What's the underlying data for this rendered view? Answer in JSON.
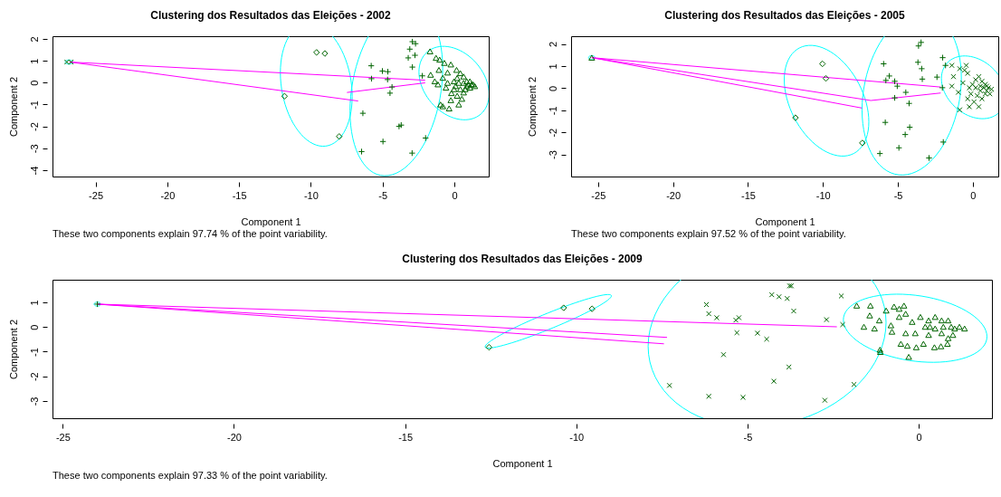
{
  "chart_data": [
    {
      "type": "scatter",
      "title": "Clustering dos Resultados das Eleições - 2002",
      "xlabel": "Component 1",
      "ylabel": "Component 2",
      "annotations": [
        "These two components explain 97.74 % of the point variability."
      ],
      "xlim": [
        -28.0,
        2.4
      ],
      "ylim": [
        -4.29,
        2.12
      ],
      "xticks": [
        -25,
        -20,
        -15,
        -10,
        -5,
        0
      ],
      "yticks": [
        -4,
        -3,
        -2,
        -1,
        0,
        1,
        2
      ],
      "series": [
        {
          "type": "line",
          "color": "#ff00ff",
          "x": [
            -26.8,
            -2.03
          ],
          "values": [
            0.94,
            0.11
          ]
        },
        {
          "type": "line",
          "color": "#ff00ff",
          "x": [
            -26.8,
            -6.7
          ],
          "values": [
            0.94,
            -0.84
          ]
        },
        {
          "type": "line",
          "color": "#ff00ff",
          "x": [
            -7.48,
            -2.03
          ],
          "values": [
            -0.45,
            -0.01
          ]
        },
        {
          "type": "scatter",
          "marker": "x",
          "color": "#006400",
          "x": [
            -27.0,
            -26.7
          ],
          "values": [
            0.94,
            0.94
          ]
        },
        {
          "type": "scatter",
          "marker": "diamond",
          "color": "#006400",
          "x": [
            -9.6,
            -9.02,
            -11.83,
            -8.02
          ],
          "values": [
            1.38,
            1.33,
            -0.62,
            -2.46
          ]
        },
        {
          "type": "scatter",
          "marker": "cross",
          "color": "#006400",
          "x": [
            -5.79,
            -5.77,
            -5.01,
            -4.63,
            -4.65,
            -4.34,
            -4.48,
            -6.37,
            -3.85,
            -3.7,
            -4.97,
            -6.46,
            -2.94,
            -2.0,
            -2.23,
            -2.92,
            -2.74,
            -3.1,
            -3.21,
            -2.92,
            -2.7
          ],
          "values": [
            0.77,
            0.18,
            0.53,
            0.5,
            0.14,
            -0.2,
            -0.48,
            -1.4,
            -2.0,
            -1.94,
            -2.69,
            -3.15,
            -3.22,
            -2.53,
            0.31,
            0.71,
            1.25,
            1.53,
            1.13,
            1.87,
            1.78
          ]
        },
        {
          "type": "scatter",
          "marker": "triangle",
          "color": "#006400",
          "x": [
            -1.69,
            -1.27,
            -1.02,
            -0.69,
            -0.24,
            0.16,
            -1.65,
            -1.36,
            -1.14,
            -1.07,
            -0.8,
            -0.47,
            -0.2,
            -0.24,
            -0.96,
            -0.8,
            -0.36,
            0.31,
            0.53,
            0.65,
            0.87,
            1.09,
            1.31,
            1.43,
            0.65,
            0.42,
            0.2,
            -0.02,
            0.09,
            0.42,
            0.76,
            1.09,
            0.87,
            0.65,
            0.31,
            1.2,
            0.98,
            -0.47,
            -0.58,
            -0.02,
            0.2
          ],
          "values": [
            1.43,
            1.13,
            1.05,
            0.9,
            0.83,
            0.58,
            0.36,
            0.06,
            -0.08,
            0.58,
            0.22,
            0.46,
            -0.48,
            -0.8,
            -1.0,
            -1.08,
            -1.18,
            -1.0,
            -0.74,
            -0.45,
            -0.16,
            0.06,
            -0.08,
            -0.16,
            0.28,
            0.43,
            0.21,
            0.06,
            -0.16,
            -0.3,
            -0.3,
            -0.23,
            0.06,
            -0.01,
            -0.01,
            -0.08,
            -0.08,
            -0.01,
            -0.23,
            -0.3,
            -0.6
          ]
        }
      ]
    },
    {
      "type": "scatter",
      "title": "Clustering dos Resultados das Eleições - 2005",
      "xlabel": "Component 1",
      "ylabel": "Component 2",
      "annotations": [
        "These two components explain 97.52 % of the point variability."
      ],
      "xlim": [
        -26.8,
        1.7
      ],
      "ylim": [
        -4.0,
        2.35
      ],
      "xticks": [
        -25,
        -20,
        -15,
        -10,
        -5,
        0
      ],
      "yticks": [
        -3,
        -2,
        -1,
        0,
        1,
        2
      ],
      "series": [
        {
          "type": "line",
          "color": "#ff00ff",
          "x": [
            -25.42,
            -2.14
          ],
          "values": [
            1.38,
            0.05
          ]
        },
        {
          "type": "line",
          "color": "#ff00ff",
          "x": [
            -25.42,
            -6.8,
            -2.14
          ],
          "values": [
            1.38,
            -0.56,
            -0.22
          ]
        },
        {
          "type": "line",
          "color": "#ff00ff",
          "x": [
            -25.42,
            -7.4
          ],
          "values": [
            1.38,
            -0.9
          ]
        },
        {
          "type": "scatter",
          "marker": "triangle",
          "color": "#006400",
          "x": [
            -25.42
          ],
          "values": [
            1.38
          ]
        },
        {
          "type": "scatter",
          "marker": "diamond",
          "color": "#006400",
          "x": [
            -10.03,
            -9.8,
            -11.83,
            -7.37
          ],
          "values": [
            1.1,
            0.44,
            -1.34,
            -2.48
          ]
        },
        {
          "type": "scatter",
          "marker": "cross",
          "color": "#006400",
          "x": [
            -5.95,
            -5.8,
            -5.57,
            -5.21,
            -5.04,
            -5.21,
            -4.47,
            -4.25,
            -5.84,
            -4.21,
            -4.51,
            -6.2,
            -4.93,
            -2.92,
            -1.97,
            -2.03,
            -2.39,
            -3.37,
            -3.41,
            -3.66,
            -3.62,
            -3.45,
            -2.01,
            -1.82
          ],
          "values": [
            1.1,
            0.35,
            0.55,
            0.31,
            0.09,
            -0.44,
            -0.19,
            -0.69,
            -1.55,
            -1.77,
            -2.1,
            -2.96,
            -2.7,
            -3.16,
            -2.44,
            0.02,
            0.5,
            0.41,
            0.88,
            1.17,
            1.91,
            2.07,
            1.38,
            1.03
          ]
        },
        {
          "type": "scatter",
          "marker": "x",
          "color": "#006400",
          "x": [
            -1.4,
            -0.87,
            -1.29,
            -0.66,
            -1.4,
            -0.97,
            -0.87,
            -0.23,
            -0.34,
            0.4,
            0.08,
            -0.13,
            -0.02,
            0.19,
            0.4,
            0.61,
            0.83,
            1.04,
            1.25,
            1.14,
            0.83,
            0.51,
            0.19,
            0.3,
            0.61,
            0.93,
            -0.34,
            -0.55,
            -0.23,
            0.72,
            0.51,
            0.93,
            -0.44
          ],
          "values": [
            1.03,
            0.88,
            0.52,
            0.24,
            0.09,
            -0.19,
            -0.98,
            -0.84,
            -0.48,
            -0.84,
            -0.62,
            -0.26,
            0.17,
            0.38,
            0.52,
            0.31,
            0.17,
            0.02,
            -0.05,
            -0.26,
            -0.26,
            -0.12,
            0.02,
            -0.34,
            -0.48,
            -0.12,
            0.67,
            0.81,
            0.02,
            0.02,
            0.09,
            0.09,
            1.03
          ]
        }
      ]
    },
    {
      "type": "scatter",
      "title": "Clustering dos Resultados das Eleições - 2009",
      "xlabel": "Component 1",
      "ylabel": "Component 2",
      "annotations": [
        "These two components explain 97.33 % of the point variability."
      ],
      "xlim": [
        -25.3,
        2.14
      ],
      "ylim": [
        -3.7,
        1.92
      ],
      "xticks": [
        -25,
        -20,
        -15,
        -10,
        -5,
        0
      ],
      "yticks": [
        -3,
        -2,
        -1,
        0,
        1
      ],
      "series": [
        {
          "type": "line",
          "color": "#ff00ff",
          "x": [
            -24.0,
            -2.39
          ],
          "values": [
            0.93,
            0.01
          ]
        },
        {
          "type": "line",
          "color": "#ff00ff",
          "x": [
            -24.0,
            -7.35
          ],
          "values": [
            0.93,
            -0.42
          ]
        },
        {
          "type": "line",
          "color": "#ff00ff",
          "x": [
            -24.0,
            -7.44
          ],
          "values": [
            0.93,
            -0.68
          ]
        },
        {
          "type": "scatter",
          "marker": "cross",
          "color": "#006400",
          "x": [
            -23.99
          ],
          "values": [
            0.93
          ]
        },
        {
          "type": "scatter",
          "marker": "diamond",
          "color": "#006400",
          "x": [
            -12.55,
            -10.37,
            -9.54
          ],
          "values": [
            -0.82,
            0.78,
            0.74
          ]
        },
        {
          "type": "scatter",
          "marker": "x",
          "color": "#006400",
          "x": [
            -6.2,
            -6.13,
            -5.9,
            -5.34,
            -5.25,
            -5.31,
            -4.71,
            -4.44,
            -4.29,
            -4.08,
            -3.84,
            -3.77,
            -3.72,
            -3.65,
            -2.26,
            -2.69,
            -2.22,
            -5.7,
            -3.79,
            -4.23,
            -7.28,
            -6.13,
            -5.13,
            -2.74,
            -1.89
          ],
          "values": [
            0.91,
            0.54,
            0.38,
            0.28,
            0.38,
            -0.23,
            -0.25,
            -0.49,
            1.31,
            1.23,
            1.16,
            1.67,
            1.67,
            0.65,
            1.26,
            0.3,
            0.1,
            -1.12,
            -1.62,
            -2.2,
            -2.37,
            -2.81,
            -2.85,
            -2.97,
            -2.33
          ]
        },
        {
          "type": "scatter",
          "marker": "triangle",
          "color": "#006400",
          "x": [
            -1.81,
            -1.41,
            -1.43,
            -1.6,
            -1.29,
            -1.12,
            -1.13,
            -1.15,
            -0.95,
            -0.72,
            -0.57,
            -0.43,
            -0.81,
            -0.78,
            -0.57,
            -0.38,
            -0.29,
            -0.52,
            -0.33,
            -0.38,
            -0.19,
            -0.1,
            -0.07,
            0.14,
            0.05,
            0.29,
            0.29,
            0.46,
            0.65,
            0.48,
            0.67,
            0.72,
            0.84,
            0.86,
            0.95,
            1.05,
            1.19,
            1.34,
            0.67,
            0.48,
            0.19,
            1.0,
            0.86,
            0.33
          ],
          "values": [
            0.87,
            0.87,
            0.47,
            0.01,
            -0.06,
            -1.01,
            -0.92,
            0.27,
            0.67,
            0.83,
            0.74,
            0.87,
            0.07,
            -0.19,
            0.41,
            0.54,
            -1.21,
            -0.68,
            -0.76,
            -0.25,
            0.21,
            -0.25,
            -0.82,
            -0.68,
            0.41,
            0.27,
            -0.32,
            -0.82,
            -0.78,
            0.41,
            0.27,
            0.01,
            -0.68,
            0.27,
            0.01,
            -0.06,
            0.01,
            -0.06,
            -0.25,
            -0.06,
            0.01,
            -0.32,
            -0.45,
            0.01
          ]
        }
      ]
    }
  ]
}
